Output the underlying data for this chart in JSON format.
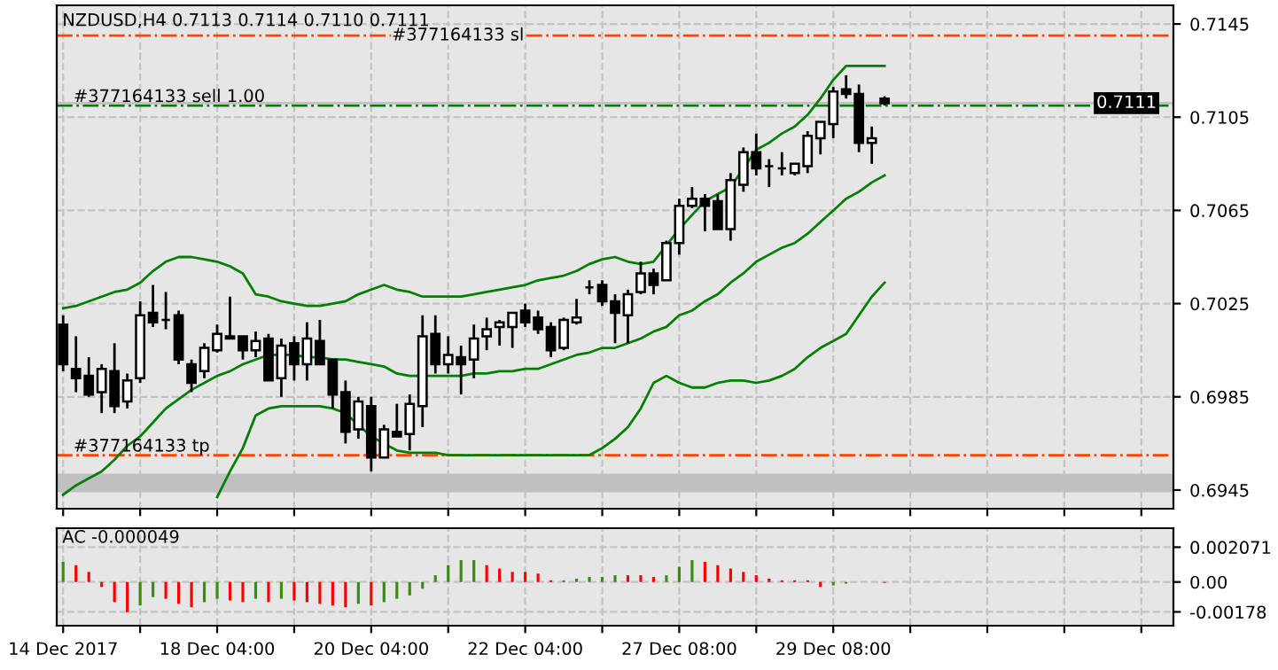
{
  "chart_data": [
    {
      "type": "candlestick",
      "title": "NZDUSD,H4 0.7113 0.7114 0.7110 0.7111",
      "categories": [
        null,
        null,
        null,
        null,
        null,
        null,
        null,
        null,
        null,
        null,
        null,
        null,
        null,
        null,
        null,
        null,
        null,
        null,
        null,
        null,
        null,
        null,
        null,
        null,
        null,
        null,
        null,
        null,
        null,
        null,
        null,
        null,
        null,
        null,
        null,
        null,
        null,
        null,
        null,
        null,
        null,
        null,
        null,
        null,
        null,
        null,
        null,
        null,
        null,
        null,
        null,
        null,
        null,
        null,
        null,
        null,
        null,
        null,
        null,
        null,
        null,
        null,
        null,
        null,
        null,
        null,
        null,
        null,
        null,
        null,
        null,
        null,
        null,
        null,
        null,
        null,
        null,
        null,
        null,
        null,
        null,
        null,
        null,
        null,
        null,
        null,
        null
      ],
      "ohlc": [
        [
          0.7016,
          0.702,
          0.6996,
          0.6999
        ],
        [
          0.6997,
          0.7011,
          0.6987,
          0.6993
        ],
        [
          0.6994,
          0.7002,
          0.6985,
          0.6986
        ],
        [
          0.6987,
          0.6999,
          0.6978,
          0.6997
        ],
        [
          0.6996,
          0.7008,
          0.6978,
          0.6981
        ],
        [
          0.6983,
          0.6995,
          0.698,
          0.6992
        ],
        [
          0.6993,
          0.7026,
          0.6991,
          0.702
        ],
        [
          0.7021,
          0.7033,
          0.7015,
          0.7017
        ],
        [
          0.7018,
          0.703,
          0.7014,
          0.7018
        ],
        [
          0.702,
          0.7022,
          0.6999,
          0.7001
        ],
        [
          0.6999,
          0.7001,
          0.6987,
          0.6991
        ],
        [
          0.6996,
          0.7008,
          0.6993,
          0.7006
        ],
        [
          0.7005,
          0.7016,
          0.7004,
          0.7012
        ],
        [
          0.7011,
          0.7028,
          0.701,
          0.701
        ],
        [
          0.7011,
          0.7011,
          0.7001,
          0.7005
        ],
        [
          0.7005,
          0.7013,
          0.7002,
          0.7009
        ],
        [
          0.701,
          0.7012,
          0.6992,
          0.6992
        ],
        [
          0.6993,
          0.701,
          0.6985,
          0.7007
        ],
        [
          0.7008,
          0.7011,
          0.6992,
          0.6999
        ],
        [
          0.6999,
          0.7017,
          0.6992,
          0.701
        ],
        [
          0.7009,
          0.7018,
          0.6999,
          0.6999
        ],
        [
          0.7001,
          0.7001,
          0.698,
          0.6986
        ],
        [
          0.6987,
          0.6992,
          0.6965,
          0.697
        ],
        [
          0.6971,
          0.6985,
          0.6967,
          0.6983
        ],
        [
          0.6981,
          0.6985,
          0.6953,
          0.6959
        ],
        [
          0.6959,
          0.6973,
          0.6959,
          0.6971
        ],
        [
          0.697,
          0.6982,
          0.6968,
          0.6968
        ],
        [
          0.6969,
          0.6986,
          0.6962,
          0.6982
        ],
        [
          0.6981,
          0.702,
          0.6972,
          0.7011
        ],
        [
          0.7012,
          0.702,
          0.6995,
          0.6999
        ],
        [
          0.6999,
          0.7011,
          0.6995,
          0.7003
        ],
        [
          0.7002,
          0.7007,
          0.6986,
          0.6999
        ],
        [
          0.7001,
          0.7016,
          0.6993,
          0.701
        ],
        [
          0.7011,
          0.7019,
          0.7005,
          0.7014
        ],
        [
          0.7015,
          0.7018,
          0.7007,
          0.7017
        ],
        [
          0.7015,
          0.7021,
          0.7006,
          0.7021
        ],
        [
          0.7022,
          0.7025,
          0.7015,
          0.7017
        ],
        [
          0.7019,
          0.7022,
          0.7012,
          0.7014
        ],
        [
          0.7015,
          0.7017,
          0.7002,
          0.7005
        ],
        [
          0.7006,
          0.7019,
          0.7005,
          0.7018
        ],
        [
          0.7017,
          0.7027,
          0.7016,
          0.7019
        ],
        [
          0.7032,
          0.7035,
          0.7029,
          0.7032
        ],
        [
          0.7033,
          0.7035,
          0.7024,
          0.7026
        ],
        [
          0.7026,
          0.7029,
          0.7008,
          0.7021
        ],
        [
          0.702,
          0.7031,
          0.7008,
          0.7029
        ],
        [
          0.703,
          0.7043,
          0.7029,
          0.7038
        ],
        [
          0.7038,
          0.704,
          0.7029,
          0.7033
        ],
        [
          0.7035,
          0.7052,
          0.7035,
          0.7051
        ],
        [
          0.7051,
          0.707,
          0.7046,
          0.7067
        ],
        [
          0.7067,
          0.7075,
          0.7066,
          0.707
        ],
        [
          0.707,
          0.7072,
          0.7056,
          0.7067
        ],
        [
          0.7069,
          0.7072,
          0.7057,
          0.7057
        ],
        [
          0.7057,
          0.7081,
          0.7052,
          0.7078
        ],
        [
          0.7076,
          0.7092,
          0.7073,
          0.709
        ],
        [
          0.709,
          0.7098,
          0.708,
          0.7083
        ],
        [
          0.7084,
          0.7087,
          0.7075,
          0.7084
        ],
        [
          0.7083,
          0.709,
          0.708,
          0.7083
        ],
        [
          0.7081,
          0.7085,
          0.708,
          0.7085
        ],
        [
          0.7084,
          0.7099,
          0.7081,
          0.7097
        ],
        [
          0.7096,
          0.7103,
          0.7089,
          0.7103
        ],
        [
          0.7102,
          0.7118,
          0.7096,
          0.7116
        ],
        [
          0.7117,
          0.7123,
          0.7113,
          0.7115
        ],
        [
          0.7115,
          0.7119,
          0.709,
          0.7094
        ],
        [
          0.7094,
          0.7101,
          0.7085,
          0.7096
        ],
        [
          0.7113,
          0.7114,
          0.711,
          0.7111
        ],
        null,
        null,
        null,
        null,
        null,
        null,
        null,
        null,
        null,
        null,
        null,
        null,
        null,
        null,
        null,
        null,
        null,
        null,
        null,
        null,
        null,
        null
      ],
      "colors": [
        "#000000",
        "#000000",
        "#000000",
        "#ffffff",
        "#000000",
        "#ffffff",
        "#ffffff",
        "#000000",
        "#000000",
        "#000000",
        "#000000",
        "#ffffff",
        "#ffffff",
        "#000000",
        "#000000",
        "#ffffff",
        "#000000",
        "#ffffff",
        "#000000",
        "#ffffff",
        "#000000",
        "#000000",
        "#000000",
        "#ffffff",
        "#000000",
        "#ffffff",
        "#000000",
        "#ffffff",
        "#ffffff",
        "#000000",
        "#ffffff",
        "#000000",
        "#ffffff",
        "#ffffff",
        "#ffffff",
        "#ffffff",
        "#000000",
        "#000000",
        "#000000",
        "#ffffff",
        "#ffffff",
        "#000000",
        "#000000",
        "#000000",
        "#ffffff",
        "#ffffff",
        "#000000",
        "#ffffff",
        "#ffffff",
        "#ffffff",
        "#000000",
        "#000000",
        "#ffffff",
        "#ffffff",
        "#000000",
        "#000000",
        "#000000",
        "#ffffff",
        "#ffffff",
        "#ffffff",
        "#ffffff",
        "#000000",
        "#000000",
        "#ffffff",
        "#000000",
        null,
        null,
        null,
        null,
        null,
        null,
        null,
        null,
        null,
        null,
        null,
        null,
        null,
        null,
        null,
        null,
        null,
        null,
        null,
        null,
        null,
        null
      ],
      "series": [
        {
          "type": "line",
          "color": "#008000",
          "values": [
            0.7023,
            0.7024,
            0.7026,
            0.7028,
            0.703,
            0.7031,
            0.7034,
            0.7039,
            0.7043,
            0.7045,
            0.7045,
            0.7044,
            0.7043,
            0.7041,
            0.7038,
            0.7029,
            0.7028,
            0.7026,
            0.7025,
            0.7024,
            0.7024,
            0.7025,
            0.7026,
            0.7029,
            0.7031,
            0.7033,
            0.7031,
            0.703,
            0.7028,
            0.7028,
            0.7028,
            0.7028,
            0.7029,
            0.703,
            0.7031,
            0.7032,
            0.7033,
            0.7035,
            0.7036,
            0.7037,
            0.7039,
            0.7042,
            0.7044,
            0.7045,
            0.7043,
            0.7042,
            0.7043,
            0.705,
            0.7057,
            0.7063,
            0.7069,
            0.7072,
            0.7075,
            0.7083,
            0.7091,
            0.7094,
            0.7098,
            0.7101,
            0.7106,
            0.7113,
            0.7121,
            0.7127,
            0.7127,
            0.7127,
            0.7127,
            null,
            null,
            null,
            null,
            null,
            null,
            null,
            null,
            null,
            null,
            null,
            null,
            null,
            null,
            null,
            null,
            null,
            null,
            null,
            null,
            null,
            null
          ]
        },
        {
          "type": "line",
          "color": "#008000",
          "values": [
            0.6943,
            0.6947,
            0.695,
            0.6953,
            0.6958,
            0.6964,
            0.6968,
            0.6974,
            0.698,
            0.6984,
            0.6988,
            0.6991,
            0.6994,
            0.6996,
            0.6999,
            0.7001,
            0.7003,
            0.7003,
            0.7003,
            0.7002,
            0.7002,
            0.7001,
            0.7001,
            0.7,
            0.6999,
            0.6998,
            0.6995,
            0.6994,
            0.6994,
            0.6994,
            0.6994,
            0.6994,
            0.6995,
            0.6995,
            0.6996,
            0.6996,
            0.6997,
            0.6997,
            0.6999,
            0.7001,
            0.7003,
            0.7004,
            0.7006,
            0.7006,
            0.7008,
            0.701,
            0.7013,
            0.7015,
            0.702,
            0.7022,
            0.7026,
            0.7029,
            0.7034,
            0.7038,
            0.7043,
            0.7046,
            0.7049,
            0.7051,
            0.7055,
            0.706,
            0.7065,
            0.707,
            0.7073,
            0.7077,
            0.708,
            null,
            null,
            null,
            null,
            null,
            null,
            null,
            null,
            null,
            null,
            null,
            null,
            null,
            null,
            null,
            null,
            null,
            null,
            null,
            null,
            null,
            null
          ]
        },
        {
          "type": "line",
          "color": "#008000",
          "values": [
            null,
            null,
            null,
            null,
            null,
            null,
            null,
            null,
            null,
            null,
            null,
            null,
            0.6942,
            0.6953,
            0.6963,
            0.6977,
            0.698,
            0.6981,
            0.6981,
            0.6981,
            0.6981,
            0.698,
            0.6978,
            0.6973,
            0.6968,
            0.6965,
            0.6962,
            0.6961,
            0.6961,
            0.6961,
            0.696,
            0.696,
            0.696,
            0.696,
            0.696,
            0.696,
            0.696,
            0.696,
            0.696,
            0.696,
            0.696,
            0.696,
            0.6963,
            0.6967,
            0.6972,
            0.698,
            0.6991,
            0.6994,
            0.6991,
            0.6989,
            0.6989,
            0.6991,
            0.6992,
            0.6992,
            0.6991,
            0.6992,
            0.6994,
            0.6997,
            0.7002,
            0.7006,
            0.7009,
            0.7012,
            0.702,
            0.7028,
            0.7034,
            null,
            null,
            null,
            null,
            null,
            null,
            null,
            null,
            null,
            null,
            null,
            null,
            null,
            null,
            null,
            null,
            null,
            null,
            null,
            null,
            null,
            null
          ]
        }
      ],
      "ylim": [
        0.6937,
        0.7153
      ],
      "yticks": [
        0.7145,
        0.7105,
        0.7065,
        0.7025,
        0.6985,
        0.6945
      ],
      "ref_lines": [
        {
          "axis": "y",
          "value": 0.714,
          "label": "#377164133 sl",
          "color": "#ff4500",
          "line_style": "dashdot"
        },
        {
          "axis": "y",
          "value": 0.711,
          "label": "#377164133 sell 1.00",
          "color": "#008000",
          "line_style": "dashdot"
        },
        {
          "axis": "y",
          "value": 0.696,
          "label": "#377164133 tp",
          "color": "#ff4500",
          "line_style": "dashdot"
        },
        {
          "axis": "y",
          "value": 0.7111,
          "label": "0.7111",
          "color": "#c0c0c0",
          "line_style": "solid"
        }
      ],
      "bands": [
        {
          "axis": "y",
          "from": 0.6944,
          "to": 0.6952,
          "color": "#c0c0c0"
        }
      ],
      "grid": true,
      "tick_labels": "y"
    },
    {
      "type": "bar",
      "title": "AC -0.000049",
      "categories": [
        "14 Dec 2017",
        null,
        null,
        null,
        null,
        null,
        null,
        null,
        null,
        null,
        null,
        null,
        "18 Dec 04:00",
        null,
        null,
        null,
        null,
        null,
        null,
        null,
        null,
        null,
        null,
        null,
        "20 Dec 04:00",
        null,
        null,
        null,
        null,
        null,
        null,
        null,
        null,
        null,
        null,
        null,
        "22 Dec 04:00",
        null,
        null,
        null,
        null,
        null,
        null,
        null,
        null,
        null,
        null,
        null,
        "27 Dec 08:00",
        null,
        null,
        null,
        null,
        null,
        null,
        null,
        null,
        null,
        null,
        null,
        "29 Dec 08:00",
        null,
        null,
        null,
        null,
        null,
        null,
        null,
        null,
        null,
        null,
        null,
        null,
        null,
        null,
        null,
        null,
        null,
        null,
        null,
        null,
        null,
        null,
        null,
        null,
        null,
        null
      ],
      "values": [
        0.0012,
        0.001,
        0.0006,
        -0.0003,
        -0.0012,
        -0.0018,
        -0.0014,
        -0.0009,
        -0.001,
        -0.0013,
        -0.0015,
        -0.0012,
        -0.001,
        -0.0011,
        -0.0012,
        -0.001,
        -0.0012,
        -0.001,
        -0.0011,
        -0.0012,
        -0.0013,
        -0.0014,
        -0.0015,
        -0.0013,
        -0.0014,
        -0.0012,
        -0.001,
        -0.0008,
        -0.0004,
        0.0004,
        0.001,
        0.0013,
        0.0013,
        0.001,
        0.0008,
        0.0006,
        0.0006,
        0.0005,
        0.0001,
        0.0001,
        0.0002,
        0.0003,
        0.0003,
        0.0004,
        0.0004,
        0.0004,
        0.0003,
        0.0004,
        0.0009,
        0.0013,
        0.0012,
        0.001,
        0.0008,
        0.0006,
        0.0004,
        0.0002,
        0.0001,
        0.0001,
        0.0001,
        -0.0003,
        -0.0002,
        -0.0001,
        0.0,
        0.0,
        -4.9e-05,
        null,
        null,
        null,
        null,
        null,
        null,
        null,
        null,
        null,
        null,
        null,
        null,
        null,
        null,
        null,
        null,
        null,
        null,
        null,
        null,
        null,
        null
      ],
      "colors": [
        "#3c8c14",
        "#ff0000",
        "#ff0000",
        "#ff0000",
        "#ff0000",
        "#ff0000",
        "#3c8c14",
        "#3c8c14",
        "#ff0000",
        "#ff0000",
        "#ff0000",
        "#3c8c14",
        "#3c8c14",
        "#ff0000",
        "#ff0000",
        "#3c8c14",
        "#ff0000",
        "#3c8c14",
        "#ff0000",
        "#ff0000",
        "#ff0000",
        "#ff0000",
        "#ff0000",
        "#3c8c14",
        "#ff0000",
        "#3c8c14",
        "#3c8c14",
        "#3c8c14",
        "#3c8c14",
        "#3c8c14",
        "#3c8c14",
        "#3c8c14",
        "#3c8c14",
        "#ff0000",
        "#ff0000",
        "#ff0000",
        "#ff0000",
        "#ff0000",
        "#ff0000",
        "#3c8c14",
        "#3c8c14",
        "#3c8c14",
        "#3c8c14",
        "#3c8c14",
        "#ff0000",
        "#ff0000",
        "#ff0000",
        "#3c8c14",
        "#3c8c14",
        "#3c8c14",
        "#ff0000",
        "#ff0000",
        "#ff0000",
        "#ff0000",
        "#ff0000",
        "#ff0000",
        "#ff0000",
        "#ff0000",
        "#ff0000",
        "#ff0000",
        "#3c8c14",
        "#3c8c14",
        "#3c8c14",
        "#3c8c14",
        "#ff0000",
        null,
        null,
        null,
        null,
        null,
        null,
        null,
        null,
        null,
        null,
        null,
        null,
        null,
        null,
        null,
        null,
        null,
        null,
        null,
        null,
        null,
        null
      ],
      "ylim": [
        -0.0026,
        0.0032
      ],
      "yticks": [
        0.002071,
        {
          "value": 0,
          "label": "0.00"
        },
        {
          "value": -0.00178,
          "label": "-0.00178"
        }
      ],
      "grid": true
    }
  ]
}
